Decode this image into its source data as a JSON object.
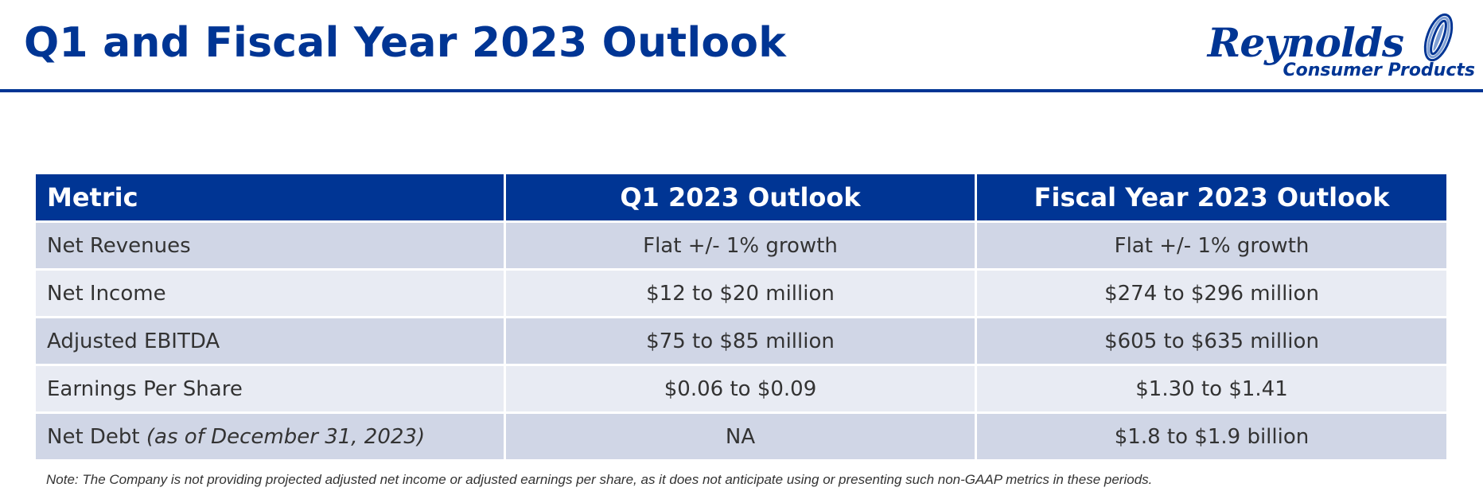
{
  "slide": {
    "title": "Q1 and Fiscal Year 2023 Outlook"
  },
  "logo": {
    "name": "Reynolds",
    "subtitle": "Consumer Products",
    "color": "#003594"
  },
  "table": {
    "headers": [
      "Metric",
      "Q1 2023 Outlook",
      "Fiscal Year 2023 Outlook"
    ],
    "rows": [
      {
        "metric": "Net Revenues",
        "metric_note": "",
        "q1": "Flat +/- 1% growth",
        "fy": "Flat +/- 1% growth"
      },
      {
        "metric": "Net Income",
        "metric_note": "",
        "q1": "$12 to $20 million",
        "fy": "$274 to $296 million"
      },
      {
        "metric": "Adjusted EBITDA",
        "metric_note": "",
        "q1": "$75 to $85 million",
        "fy": "$605 to $635 million"
      },
      {
        "metric": "Earnings Per Share",
        "metric_note": "",
        "q1": "$0.06 to $0.09",
        "fy": "$1.30 to $1.41"
      },
      {
        "metric": "Net Debt",
        "metric_note": "(as of December 31, 2023)",
        "q1": "NA",
        "fy": "$1.8 to $1.9 billion"
      }
    ],
    "header_color": "#003594",
    "row_colors": [
      "#d0d6e6",
      "#e8ebf3"
    ]
  },
  "footnote": "Note:  The Company is not providing projected adjusted net income or adjusted earnings per share, as it does not anticipate using or presenting such non-GAAP metrics in these periods."
}
